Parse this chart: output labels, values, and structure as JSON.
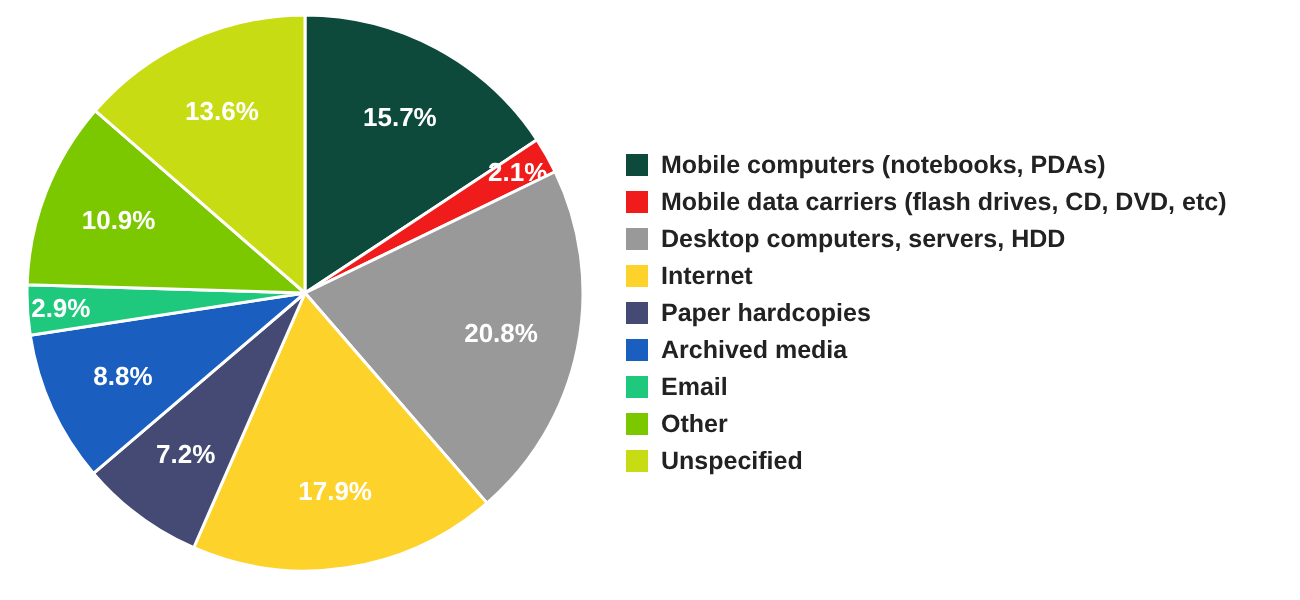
{
  "chart_data": {
    "type": "pie",
    "categories": [
      "Mobile computers (notebooks, PDAs)",
      "Mobile data carriers (flash drives, CD, DVD, etc)",
      "Desktop computers, servers, HDD",
      "Internet",
      "Paper hardcopies",
      "Archived media",
      "Email",
      "Other",
      "Unspecified"
    ],
    "values": [
      15.7,
      2.1,
      20.8,
      17.9,
      7.2,
      8.8,
      2.9,
      10.9,
      13.6
    ],
    "colors": [
      "#0d4a3c",
      "#f01c1c",
      "#999999",
      "#fdd22b",
      "#444a73",
      "#1a5ec0",
      "#1ec87d",
      "#7bc800",
      "#c8dc14"
    ],
    "value_labels": [
      "15.7%",
      "2.1%",
      "20.8%",
      "17.9%",
      "7.2%",
      "8.8%",
      "2.9%",
      "10.9%",
      "13.6%"
    ],
    "legend": "right"
  }
}
